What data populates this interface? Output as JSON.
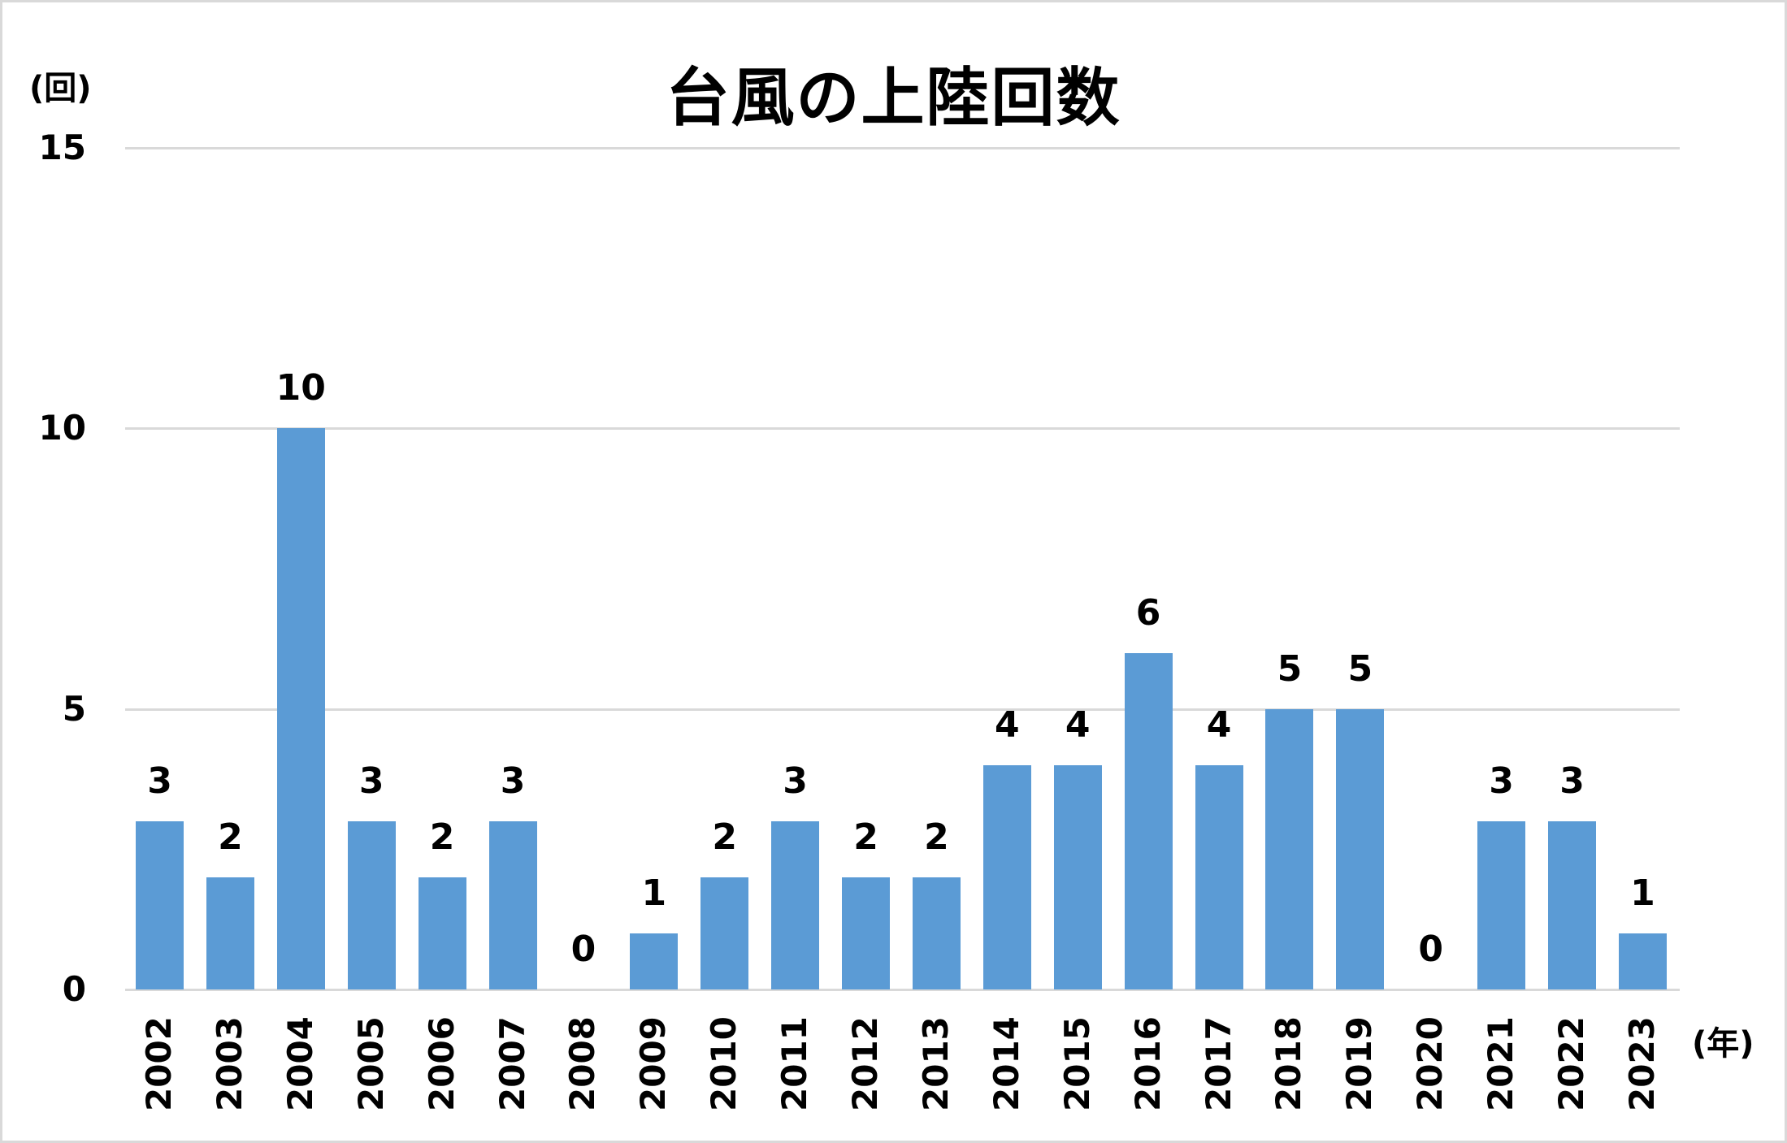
{
  "chart_data": {
    "type": "bar",
    "title": "台風の上陸回数",
    "xlabel": "(年)",
    "ylabel": "(回)",
    "ylim": [
      0,
      15
    ],
    "yticks": [
      "0",
      "5",
      "10",
      "15"
    ],
    "grid": true,
    "legend": "none",
    "bar_color": "#5b9bd5",
    "categories": [
      "2002",
      "2003",
      "2004",
      "2005",
      "2006",
      "2007",
      "2008",
      "2009",
      "2010",
      "2011",
      "2012",
      "2013",
      "2014",
      "2015",
      "2016",
      "2017",
      "2018",
      "2019",
      "2020",
      "2021",
      "2022",
      "2023"
    ],
    "values": [
      3,
      2,
      10,
      3,
      2,
      3,
      0,
      1,
      2,
      3,
      2,
      2,
      4,
      4,
      6,
      4,
      5,
      5,
      0,
      3,
      3,
      1
    ],
    "data_labels": [
      "3",
      "2",
      "10",
      "3",
      "2",
      "3",
      "0",
      "1",
      "2",
      "3",
      "2",
      "2",
      "4",
      "4",
      "6",
      "4",
      "5",
      "5",
      "0",
      "3",
      "3",
      "1"
    ]
  }
}
